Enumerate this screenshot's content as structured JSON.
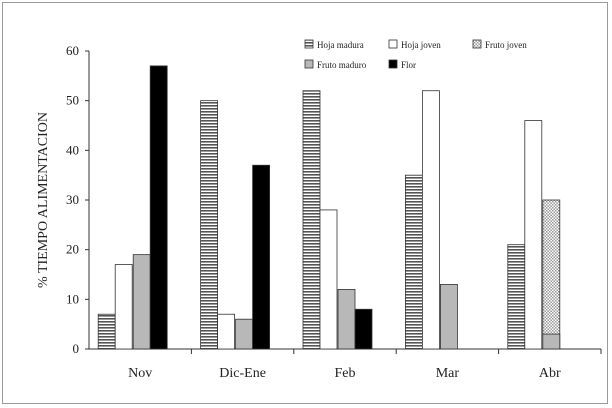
{
  "chart_data": {
    "type": "bar",
    "ylabel": "% TIEMPO ALIMENTACION",
    "xlabel": "",
    "ylim": [
      0,
      60
    ],
    "yticks": [
      0,
      10,
      20,
      30,
      40,
      50,
      60
    ],
    "categories": [
      "Nov",
      "Dic-Ene",
      "Feb",
      "Mar",
      "Abr"
    ],
    "legend_position": "top-right",
    "grid": false,
    "series": [
      {
        "name": "Hoja madura",
        "pattern": "horizontal-stripes",
        "color": "#555555",
        "values": [
          7,
          50,
          52,
          35,
          21
        ]
      },
      {
        "name": "Hoja joven",
        "pattern": "solid",
        "color": "#ffffff",
        "values": [
          17,
          7,
          28,
          52,
          46
        ]
      },
      {
        "name": "Fruto joven",
        "pattern": "checker",
        "color": "#bbbbbb",
        "values": [
          0,
          0,
          0,
          0,
          30
        ]
      },
      {
        "name": "Fruto maduro",
        "pattern": "solid",
        "color": "#b8b8b8",
        "values": [
          19,
          6,
          12,
          13,
          3
        ]
      },
      {
        "name": "Flor",
        "pattern": "solid",
        "color": "#000000",
        "values": [
          57,
          37,
          8,
          0,
          0
        ]
      }
    ]
  }
}
